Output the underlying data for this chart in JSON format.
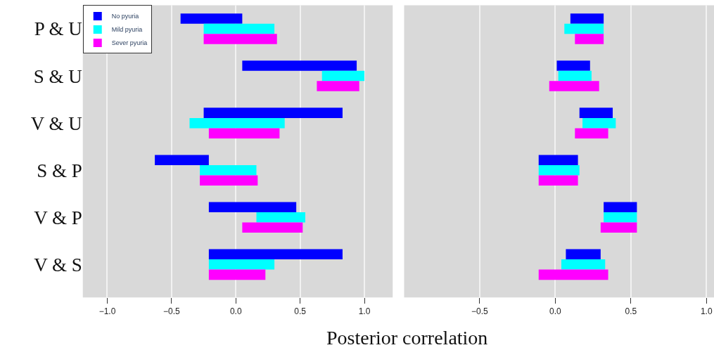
{
  "chart_data": [
    {
      "type": "bar",
      "orientation": "horizontal",
      "xlabel": "Posterior correlation",
      "categories": [
        "P & U",
        "S & U",
        "V & U",
        "S & P",
        "V & P",
        "V & S"
      ],
      "series": [
        {
          "name": "No pyuria",
          "color": "#0000ff",
          "base": [
            -0.43,
            0.05,
            -0.25,
            -0.63,
            -0.21,
            -0.21
          ],
          "values": [
            0.48,
            0.89,
            1.08,
            0.42,
            0.68,
            1.04
          ]
        },
        {
          "name": "Mild pyuria",
          "color": "#00ffff",
          "base": [
            -0.25,
            0.67,
            -0.36,
            -0.28,
            0.16,
            -0.21
          ],
          "values": [
            0.55,
            0.33,
            0.74,
            0.44,
            0.38,
            0.51
          ]
        },
        {
          "name": "Sever pyuria",
          "color": "#ff00ff",
          "base": [
            -0.25,
            0.63,
            -0.21,
            -0.28,
            0.05,
            -0.21
          ],
          "values": [
            0.57,
            0.33,
            0.55,
            0.45,
            0.47,
            0.44
          ]
        }
      ],
      "xlim": [
        -1.19,
        1.22
      ],
      "xticks": [
        {
          "value": -1,
          "label": "−1.0"
        },
        {
          "value": -0.5,
          "label": "−0.5"
        },
        {
          "value": 0,
          "label": "0.0"
        },
        {
          "value": 0.5,
          "label": "0.5"
        },
        {
          "value": 1,
          "label": "1.0"
        }
      ],
      "grid": "x",
      "legend": "top left"
    },
    {
      "type": "bar",
      "orientation": "horizontal",
      "series": [
        {
          "color": "#0000ff",
          "base": [
            0.1,
            0.01,
            0.16,
            -0.11,
            0.32,
            0.07
          ],
          "values": [
            0.22,
            0.22,
            0.22,
            0.26,
            0.22,
            0.23
          ]
        },
        {
          "color": "#00ffff",
          "base": [
            0.06,
            0.02,
            0.18,
            -0.11,
            0.32,
            0.04
          ],
          "values": [
            0.26,
            0.22,
            0.22,
            0.27,
            0.22,
            0.29
          ]
        },
        {
          "color": "#ff00ff",
          "base": [
            0.13,
            -0.04,
            0.13,
            -0.11,
            0.3,
            -0.11
          ],
          "values": [
            0.19,
            0.33,
            0.22,
            0.26,
            0.24,
            0.46
          ]
        }
      ],
      "xlim": [
        -1.0,
        1.05
      ],
      "xticks": [
        {
          "value": -0.5,
          "label": "−0.5"
        },
        {
          "value": 0,
          "label": "0.0"
        },
        {
          "value": 0.5,
          "label": "0.5"
        },
        {
          "value": 1,
          "label": "1.0"
        }
      ],
      "grid": "x",
      "tick_labels": "x"
    }
  ]
}
